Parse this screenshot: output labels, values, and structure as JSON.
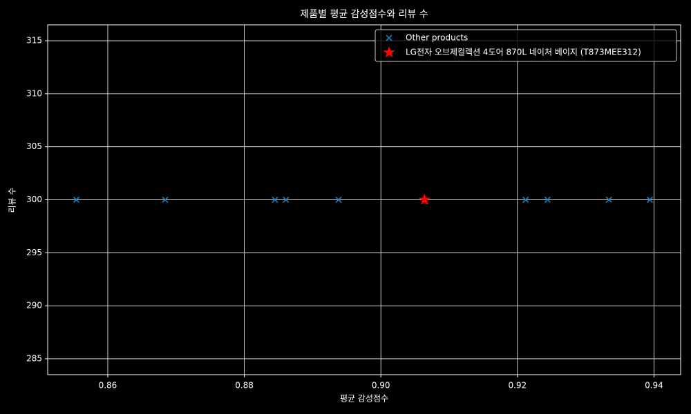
{
  "chart_data": {
    "type": "scatter",
    "title": "제품별 평균 감성점수와 리뷰 수",
    "x_label": "평균 감성점수",
    "y_label": "리뷰 수",
    "series": [
      {
        "name": "Other products",
        "color": "#1f77b4",
        "marker": "x",
        "x": [
          0.8554,
          0.8684,
          0.8845,
          0.8861,
          0.8938,
          0.9212,
          0.9244,
          0.9334,
          0.9394
        ],
        "values": [
          300,
          300,
          300,
          300,
          300,
          300,
          300,
          300,
          300
        ]
      },
      {
        "name": "LG전자 오브제컬렉션 4도어 870L 네이처 베이지 (T873MEE312)",
        "color": "#ff0000",
        "marker": "star",
        "x": [
          0.9064
        ],
        "values": [
          300
        ]
      }
    ],
    "xlim": [
      0.8512,
      0.9439
    ],
    "xticks": [
      0.86,
      0.88,
      {
        "value": 0.9,
        "label": "0.90"
      },
      0.92,
      0.94
    ],
    "ylim": [
      283.5,
      316.5
    ],
    "yticks": [
      285,
      290,
      295,
      300,
      305,
      310,
      315
    ],
    "grid": true,
    "legend": "upper right"
  }
}
